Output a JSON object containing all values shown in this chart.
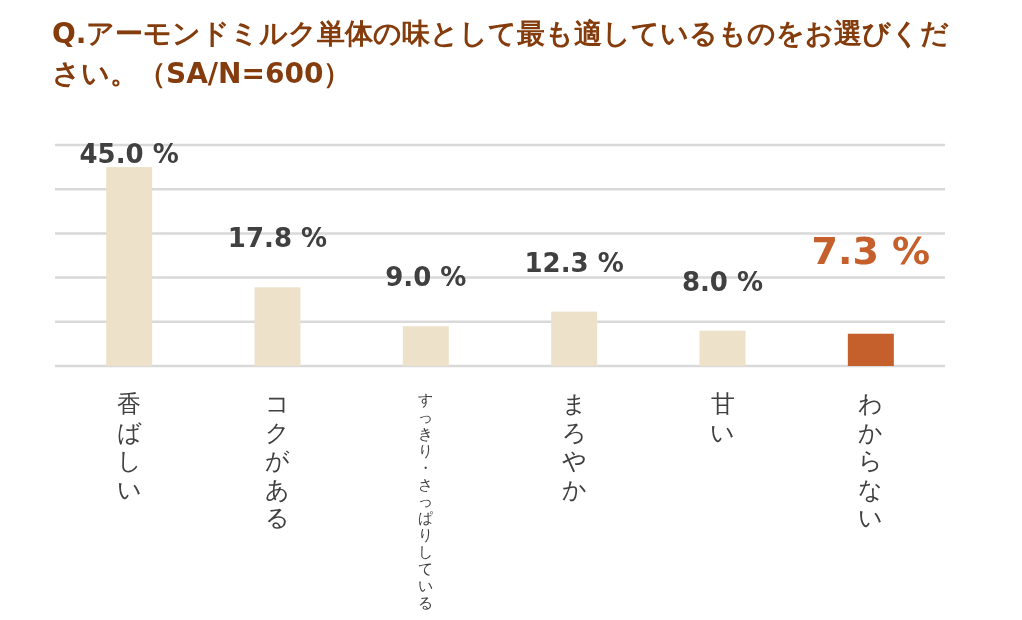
{
  "chart_data": {
    "type": "bar",
    "title": "Q.アーモンドミルク単体の味として最も適しているものをお選びください。（SA/N=600）",
    "categories": [
      "香ばしい",
      "コクがある",
      "すっきり・さっぱりしている",
      "まろやか",
      "甘い",
      "わからない"
    ],
    "values": [
      45.0,
      17.8,
      9.0,
      12.3,
      8.0,
      7.3
    ],
    "colors": [
      "#ede1c9",
      "#ede1c9",
      "#ede1c9",
      "#ede1c9",
      "#ede1c9",
      "#c5602c"
    ],
    "value_labels": [
      "45.0 %",
      "17.8 %",
      "9.0 %",
      "12.3 %",
      "8.0 %",
      "7.3 %"
    ],
    "ylim": [
      0,
      50
    ],
    "yticks": [
      {
        "value": 0,
        "label": null
      },
      {
        "value": 10,
        "label": null
      },
      {
        "value": 20,
        "label": null
      },
      {
        "value": 30,
        "label": null
      },
      {
        "value": 40,
        "label": null
      },
      {
        "value": 50,
        "label": null
      }
    ],
    "grid": "y",
    "tick_labels": "x"
  }
}
